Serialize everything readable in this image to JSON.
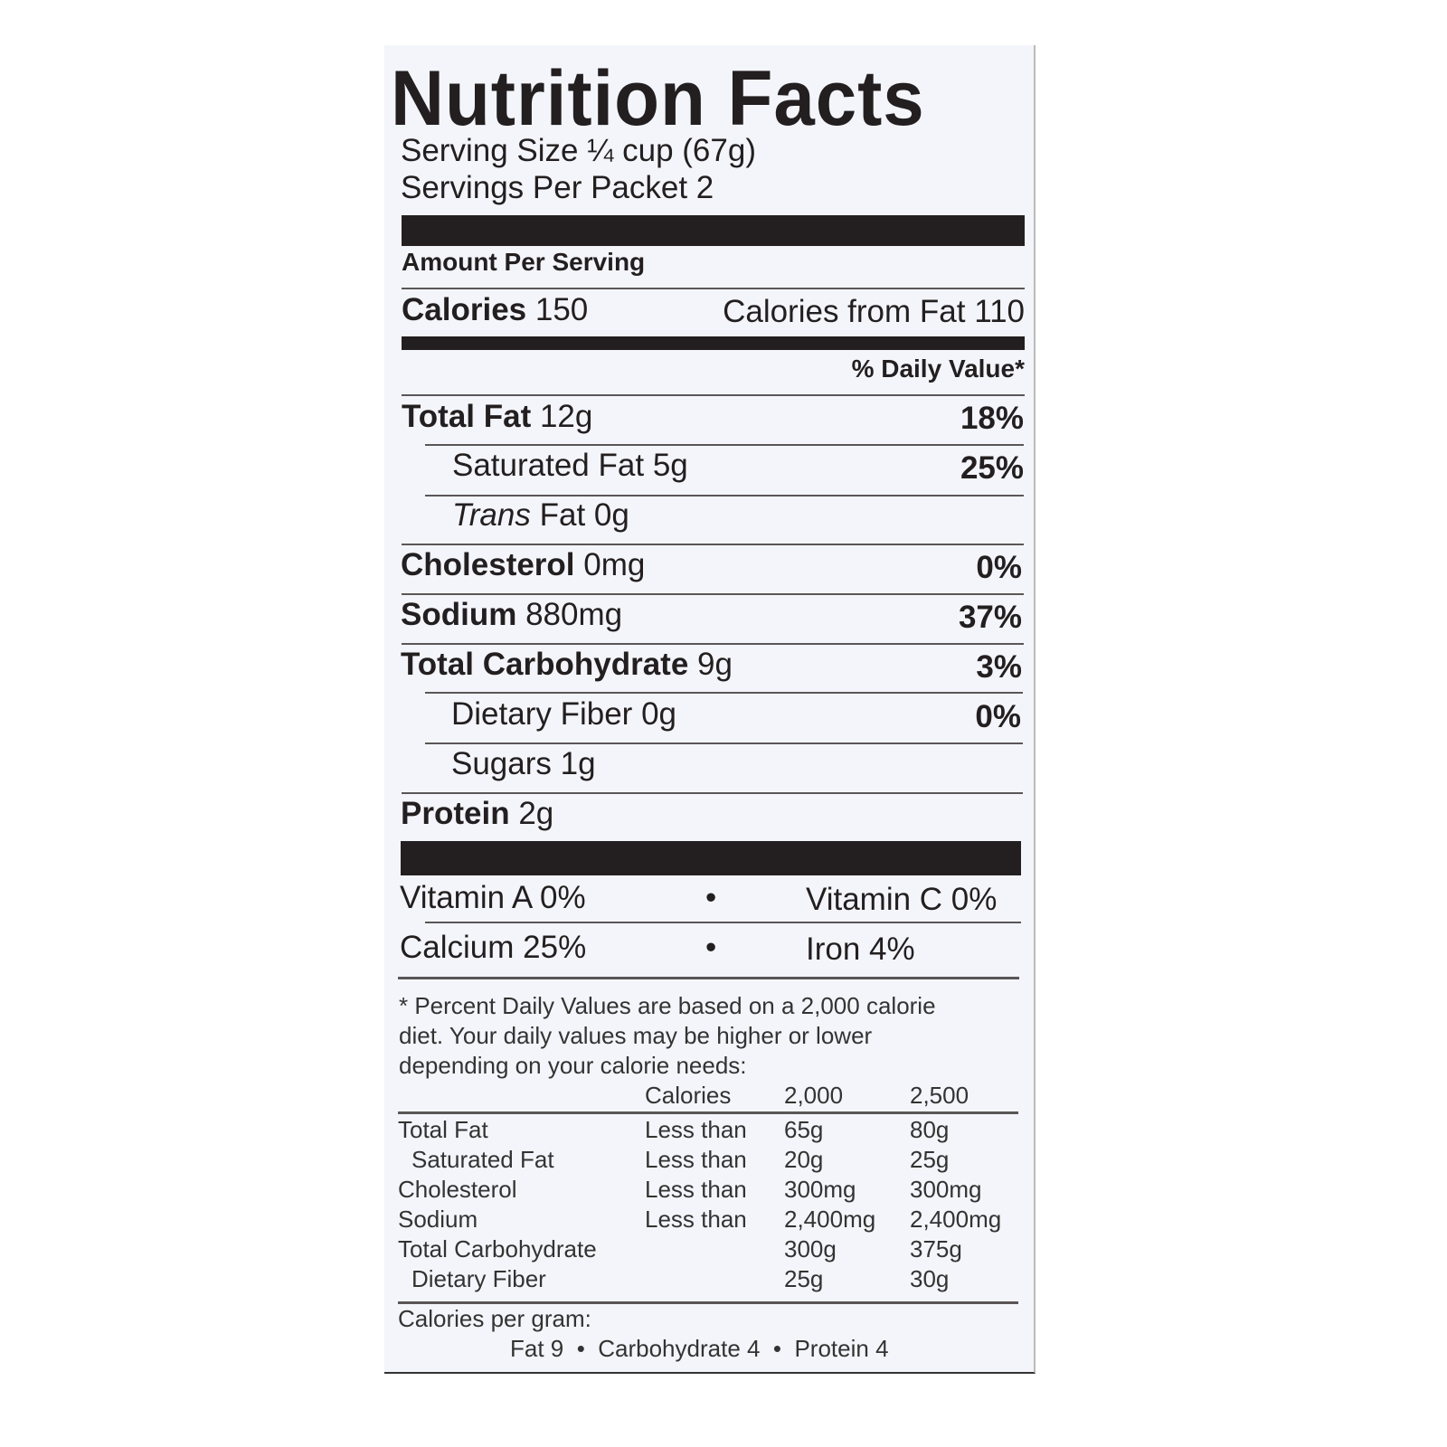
{
  "title": "Nutrition Facts",
  "serving_size": "Serving Size ¼ cup (67g)",
  "servings_per": "Servings Per Packet 2",
  "amount_per_serving": "Amount Per Serving",
  "calories": {
    "label": "Calories",
    "value": "150",
    "from_fat": "Calories from Fat 110"
  },
  "dv_header": "% Daily Value*",
  "nutrients": [
    {
      "label": "Total Fat",
      "amount": "12g",
      "dv": "18%"
    },
    {
      "label": "Saturated Fat",
      "amount": "5g",
      "dv": "25%"
    },
    {
      "label": "Trans",
      "label2": "Fat",
      "amount": "0g",
      "dv": ""
    },
    {
      "label": "Cholesterol",
      "amount": "0mg",
      "dv": "0%"
    },
    {
      "label": "Sodium",
      "amount": "880mg",
      "dv": "37%"
    },
    {
      "label": "Total Carbohydrate",
      "amount": "9g",
      "dv": "3%"
    },
    {
      "label": "Dietary Fiber",
      "amount": "0g",
      "dv": "0%"
    },
    {
      "label": "Sugars",
      "amount": "1g",
      "dv": ""
    },
    {
      "label": "Protein",
      "amount": "2g",
      "dv": ""
    }
  ],
  "vitamins": {
    "a": "Vitamin A 0%",
    "c": "Vitamin C 0%",
    "calcium": "Calcium 25%",
    "iron": "Iron 4%",
    "bullet": "•"
  },
  "footnote": [
    "* Percent Daily Values are based on a 2,000 calorie",
    "diet. Your daily values may be higher or lower",
    "depending on your calorie needs:"
  ],
  "dv_table": {
    "header": [
      "",
      "Calories",
      "2,000",
      "2,500"
    ],
    "rows": [
      [
        "Total Fat",
        "Less than",
        "65g",
        "80g"
      ],
      [
        " Saturated Fat",
        "Less than",
        "20g",
        "25g"
      ],
      [
        "Cholesterol",
        "Less than",
        "300mg",
        "300mg"
      ],
      [
        "Sodium",
        "Less than",
        "2,400mg",
        "2,400mg"
      ],
      [
        "Total Carbohydrate",
        "",
        "300g",
        "375g"
      ],
      [
        " Dietary Fiber",
        "",
        "25g",
        "30g"
      ]
    ]
  },
  "cal_per_gram": {
    "label": "Calories per gram:",
    "values": "Fat 9  •  Carbohydrate 4  •  Protein 4"
  }
}
